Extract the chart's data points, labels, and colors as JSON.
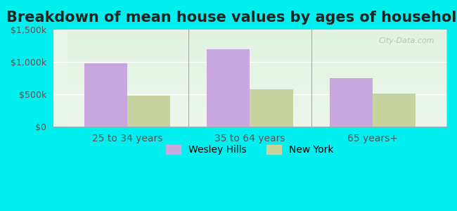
{
  "title": "Breakdown of mean house values by ages of householders",
  "categories": [
    "25 to 34 years",
    "35 to 64 years",
    "65 years+"
  ],
  "wesley_hills": [
    975000,
    1200000,
    750000
  ],
  "new_york": [
    475000,
    575000,
    510000
  ],
  "ylim": [
    0,
    1500000
  ],
  "yticks": [
    0,
    500000,
    1000000,
    1500000
  ],
  "ytick_labels": [
    "$0",
    "$500k",
    "$1,000k",
    "$1,500k"
  ],
  "bar_color_wh": "#c9a8e0",
  "bar_color_ny": "#c8d4a0",
  "bg_outer": "#00EFEF",
  "bg_plot_top": "#e8f5e8",
  "bg_plot_bottom": "#f5fff5",
  "legend_wh": "Wesley Hills",
  "legend_ny": "New York",
  "watermark": "City-Data.com",
  "bar_width": 0.35,
  "title_fontsize": 15,
  "axis_label_fontsize": 10,
  "tick_fontsize": 9
}
